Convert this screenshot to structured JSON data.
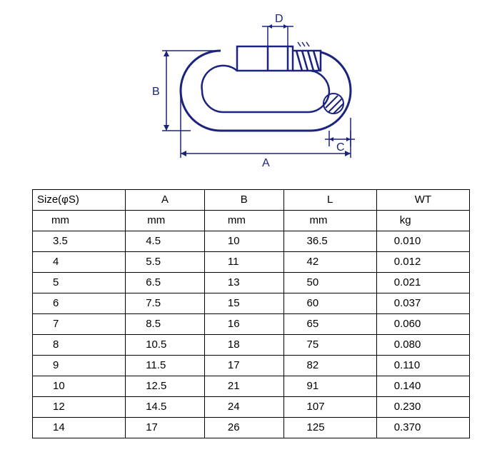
{
  "diagram": {
    "type": "technical-drawing",
    "labels": {
      "A": "A",
      "B": "B",
      "C": "C",
      "D": "D"
    },
    "stroke_color": "#1a237e",
    "stroke_width_outer": 3,
    "stroke_width_inner": 2,
    "stroke_width_dim": 1.5,
    "font_family": "Arial",
    "label_fontsize": 16
  },
  "table": {
    "columns": [
      {
        "key": "size",
        "header": "Size(φS)",
        "unit": "mm"
      },
      {
        "key": "a",
        "header": "A",
        "unit": "mm"
      },
      {
        "key": "b",
        "header": "B",
        "unit": "mm"
      },
      {
        "key": "l",
        "header": "L",
        "unit": "mm"
      },
      {
        "key": "wt",
        "header": "WT",
        "unit": "kg"
      }
    ],
    "rows": [
      {
        "size": "3.5",
        "a": "4.5",
        "b": "10",
        "l": "36.5",
        "wt": "0.010"
      },
      {
        "size": "4",
        "a": "5.5",
        "b": "11",
        "l": "42",
        "wt": "0.012"
      },
      {
        "size": "5",
        "a": "6.5",
        "b": "13",
        "l": "50",
        "wt": "0.021"
      },
      {
        "size": "6",
        "a": "7.5",
        "b": "15",
        "l": "60",
        "wt": "0.037"
      },
      {
        "size": "7",
        "a": "8.5",
        "b": "16",
        "l": "65",
        "wt": "0.060"
      },
      {
        "size": "8",
        "a": "10.5",
        "b": "18",
        "l": "75",
        "wt": "0.080"
      },
      {
        "size": "9",
        "a": "11.5",
        "b": "17",
        "l": "82",
        "wt": "0.110"
      },
      {
        "size": "10",
        "a": "12.5",
        "b": "21",
        "l": "91",
        "wt": "0.140"
      },
      {
        "size": "12",
        "a": "14.5",
        "b": "24",
        "l": "107",
        "wt": "0.230"
      },
      {
        "size": "14",
        "a": "17",
        "b": "26",
        "l": "125",
        "wt": "0.370"
      }
    ],
    "border_color": "#000000",
    "font_size": 15,
    "text_color": "#000000",
    "background": "#ffffff"
  }
}
